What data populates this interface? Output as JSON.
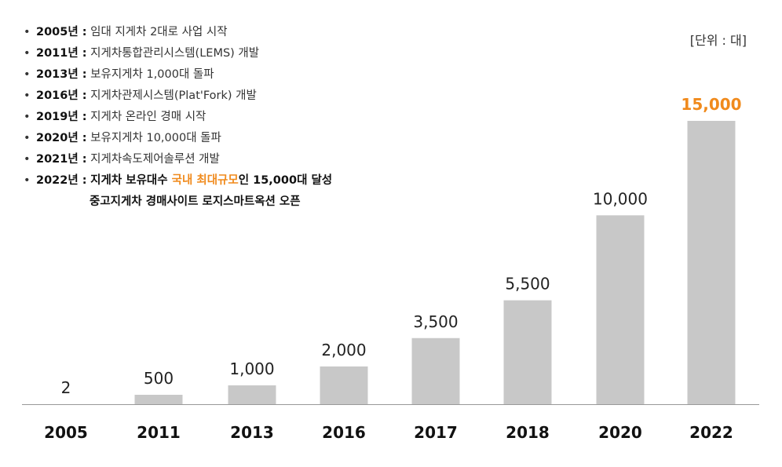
{
  "unit_label": "[단위 : 대]",
  "timeline": [
    {
      "year": "2005년 :",
      "parts": [
        {
          "text": "임대 지게차 2대로 사업 시작"
        }
      ]
    },
    {
      "year": "2011년 :",
      "parts": [
        {
          "text": "지게차통합관리시스템(LEMS) 개발"
        }
      ]
    },
    {
      "year": "2013년 :",
      "parts": [
        {
          "text": "보유지게차 1,000대 돌파"
        }
      ]
    },
    {
      "year": "2016년 :",
      "parts": [
        {
          "text": "지게차관제시스템(Plat'Fork) 개발"
        }
      ]
    },
    {
      "year": "2019년 :",
      "parts": [
        {
          "text": "지게차 온라인 경매 시작"
        }
      ]
    },
    {
      "year": "2020년 :",
      "parts": [
        {
          "text": "보유지게차 10,000대 돌파"
        }
      ]
    },
    {
      "year": "2021년 :",
      "parts": [
        {
          "text": "지게차속도제어솔루션 개발"
        }
      ]
    },
    {
      "year": "2022년 :",
      "strong": true,
      "parts": [
        {
          "text": "지게차 보유대수 "
        },
        {
          "text": "국내 최대규모",
          "highlight": true
        },
        {
          "text": "인 15,000대 달성"
        }
      ],
      "sub": "중고지게차 경매사이트 로지스마트옥션 오픈"
    }
  ],
  "chart_data": {
    "type": "bar",
    "categories": [
      "2005",
      "2011",
      "2013",
      "2016",
      "2017",
      "2018",
      "2020",
      "2022"
    ],
    "values": [
      2,
      500,
      1000,
      2000,
      3500,
      5500,
      10000,
      15000
    ],
    "value_labels": [
      "2",
      "500",
      "1,000",
      "2,000",
      "3,500",
      "5,500",
      "10,000",
      "15,000"
    ],
    "ylim": [
      0,
      15000
    ],
    "title": "",
    "xlabel": "",
    "ylabel": "",
    "colors": {
      "bar": "#c8c8c8",
      "highlight": "#f08a1c",
      "axis": "#999999",
      "label": "#222222"
    },
    "highlight_index": 7,
    "grid": false
  }
}
